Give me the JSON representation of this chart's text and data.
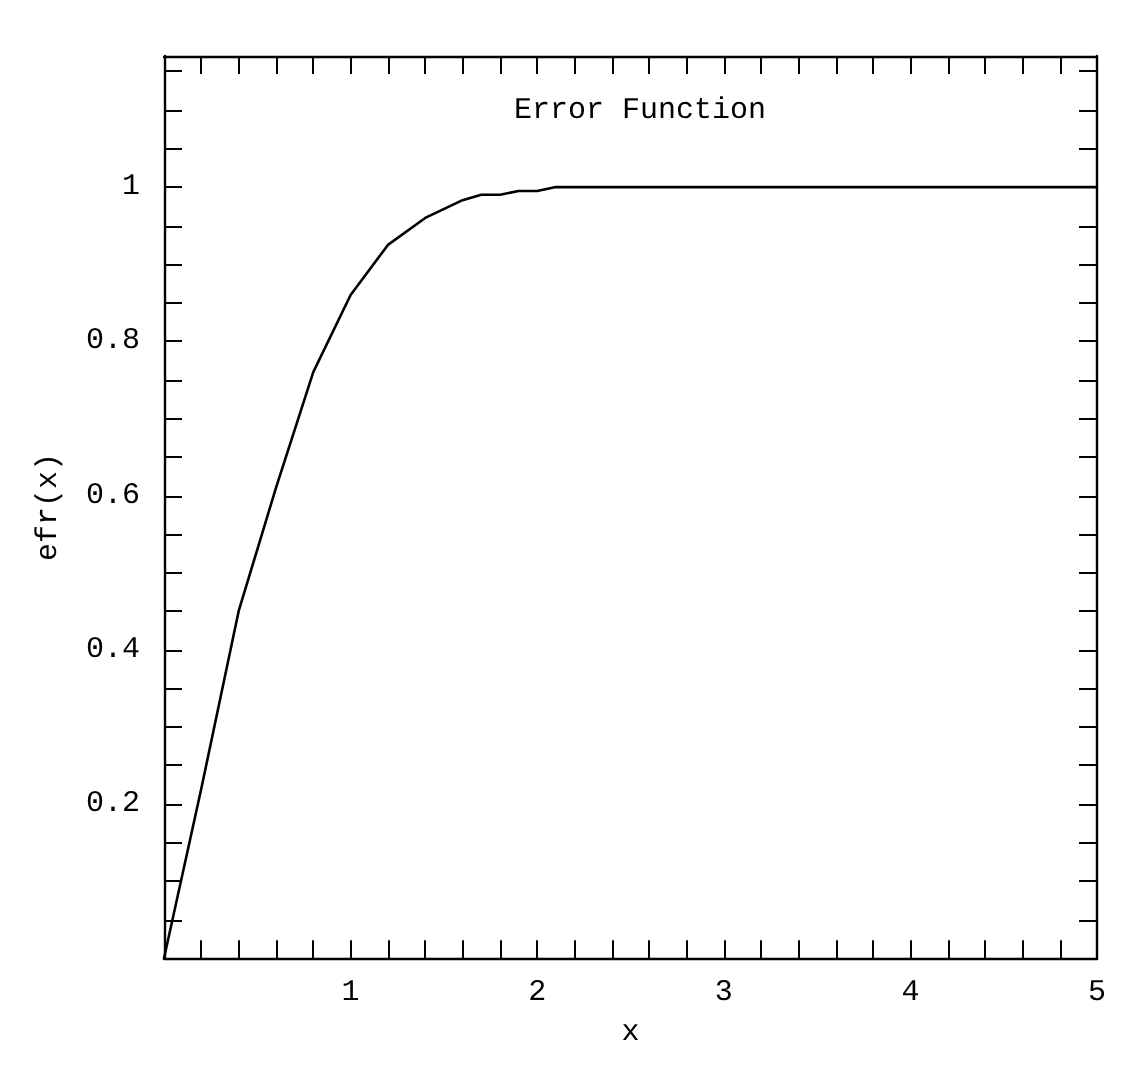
{
  "chart_data": {
    "type": "line",
    "title": "Error Function",
    "xlabel": "x",
    "ylabel": "efr(x)",
    "x": [
      0,
      0.2,
      0.4,
      0.6,
      0.8,
      1.0,
      1.2,
      1.4,
      1.6,
      1.7,
      1.8,
      1.9,
      2.0,
      2.1,
      5
    ],
    "values": [
      0,
      0.22,
      0.45,
      0.61,
      0.76,
      0.86,
      0.925,
      0.96,
      0.983,
      0.99,
      0.99,
      0.995,
      0.995,
      1,
      1
    ],
    "color": "#000000",
    "xlim": [
      0,
      5
    ],
    "ylim": [
      0,
      1.17
    ],
    "xticks": [
      {
        "value": 0.2,
        "label": null
      },
      {
        "value": 0.4,
        "label": null
      },
      {
        "value": 0.6,
        "label": null
      },
      {
        "value": 0.8,
        "label": null
      },
      1,
      {
        "value": 1.2,
        "label": null
      },
      {
        "value": 1.4,
        "label": null
      },
      {
        "value": 1.6,
        "label": null
      },
      {
        "value": 1.8,
        "label": null
      },
      2,
      {
        "value": 2.2,
        "label": null
      },
      {
        "value": 2.4,
        "label": null
      },
      {
        "value": 2.6,
        "label": null
      },
      {
        "value": 2.8,
        "label": null
      },
      3,
      {
        "value": 3.2,
        "label": null
      },
      {
        "value": 3.4,
        "label": null
      },
      {
        "value": 3.6,
        "label": null
      },
      {
        "value": 3.8,
        "label": null
      },
      4,
      {
        "value": 4.2,
        "label": null
      },
      {
        "value": 4.4,
        "label": null
      },
      {
        "value": 4.6,
        "label": null
      },
      {
        "value": 4.8,
        "label": null
      },
      5
    ],
    "yticks": [
      {
        "value": 0.05,
        "label": null
      },
      {
        "value": 0.1,
        "label": null
      },
      {
        "value": 0.15,
        "label": null
      },
      {
        "value": 0.2,
        "label": "0.2"
      },
      {
        "value": 0.25,
        "label": null
      },
      {
        "value": 0.3,
        "label": null
      },
      {
        "value": 0.35,
        "label": null
      },
      {
        "value": 0.4,
        "label": "0.4"
      },
      {
        "value": 0.45,
        "label": null
      },
      {
        "value": 0.5,
        "label": null
      },
      {
        "value": 0.55,
        "label": null
      },
      {
        "value": 0.6,
        "label": "0.6"
      },
      {
        "value": 0.65,
        "label": null
      },
      {
        "value": 0.7,
        "label": null
      },
      {
        "value": 0.75,
        "label": null
      },
      {
        "value": 0.8,
        "label": "0.8"
      },
      {
        "value": 0.85,
        "label": null
      },
      {
        "value": 0.9,
        "label": null
      },
      {
        "value": 0.95,
        "label": null
      },
      1,
      {
        "value": 1.05,
        "label": null
      },
      {
        "value": 1.1,
        "label": null
      },
      {
        "value": 1.15,
        "label": null
      }
    ],
    "grid": false,
    "marker": "none",
    "line_style": "solid"
  }
}
